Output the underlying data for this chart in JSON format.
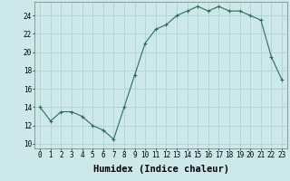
{
  "xlabel": "Humidex (Indice chaleur)",
  "ylabel": "",
  "x": [
    0,
    1,
    2,
    3,
    4,
    5,
    6,
    7,
    8,
    9,
    10,
    11,
    12,
    13,
    14,
    15,
    16,
    17,
    18,
    19,
    20,
    21,
    22,
    23
  ],
  "y": [
    14,
    12.5,
    13.5,
    13.5,
    13,
    12,
    11.5,
    10.5,
    14,
    17.5,
    21,
    22.5,
    23,
    24,
    24.5,
    25,
    24.5,
    25,
    24.5,
    24.5,
    24,
    23.5,
    19.5,
    17
  ],
  "ylim": [
    9.5,
    25.5
  ],
  "yticks": [
    10,
    12,
    14,
    16,
    18,
    20,
    22,
    24
  ],
  "line_color": "#2e6b5e",
  "bg_color": "#cce8ea",
  "grid_color": "#aacfd2",
  "tick_label_fontsize": 5.5,
  "xlabel_fontsize": 7.5,
  "xlim": [
    -0.5,
    23.5
  ]
}
